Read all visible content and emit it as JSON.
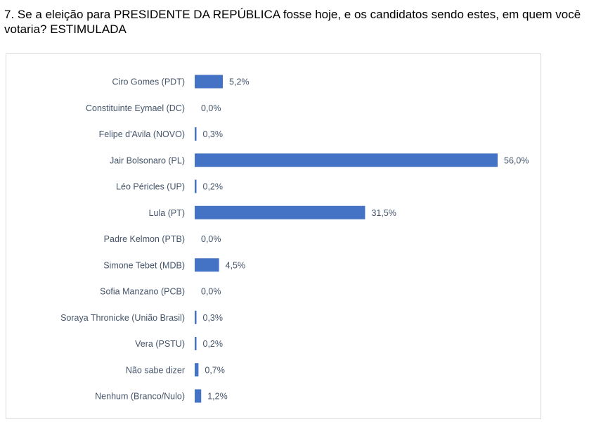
{
  "question": "7. Se a eleição para PRESIDENTE DA REPÚBLICA fosse hoje, e os candidatos sendo estes, em quem você votaria? ESTIMULADA",
  "chart_data": {
    "type": "bar",
    "orientation": "horizontal",
    "title": "",
    "xlabel": "",
    "ylabel": "",
    "grid": false,
    "bar_color": "#4472c4",
    "xlim": [
      0,
      56
    ],
    "categories": [
      "Ciro Gomes (PDT)",
      "Constituinte Eymael (DC)",
      "Felipe d'Avila (NOVO)",
      "Jair Bolsonaro (PL)",
      "Léo Péricles (UP)",
      "Lula (PT)",
      "Padre Kelmon (PTB)",
      "Simone Tebet (MDB)",
      "Sofia Manzano (PCB)",
      "Soraya Thronicke (União Brasil)",
      "Vera (PSTU)",
      "Não sabe dizer",
      "Nenhum (Branco/Nulo)"
    ],
    "values": [
      5.2,
      0.0,
      0.3,
      56.0,
      0.2,
      31.5,
      0.0,
      4.5,
      0.0,
      0.3,
      0.2,
      0.7,
      1.2
    ],
    "value_labels": [
      "5,2%",
      "0,0%",
      "0,3%",
      "56,0%",
      "0,2%",
      "31,5%",
      "0,0%",
      "4,5%",
      "0,0%",
      "0,3%",
      "0,2%",
      "0,7%",
      "1,2%"
    ]
  }
}
